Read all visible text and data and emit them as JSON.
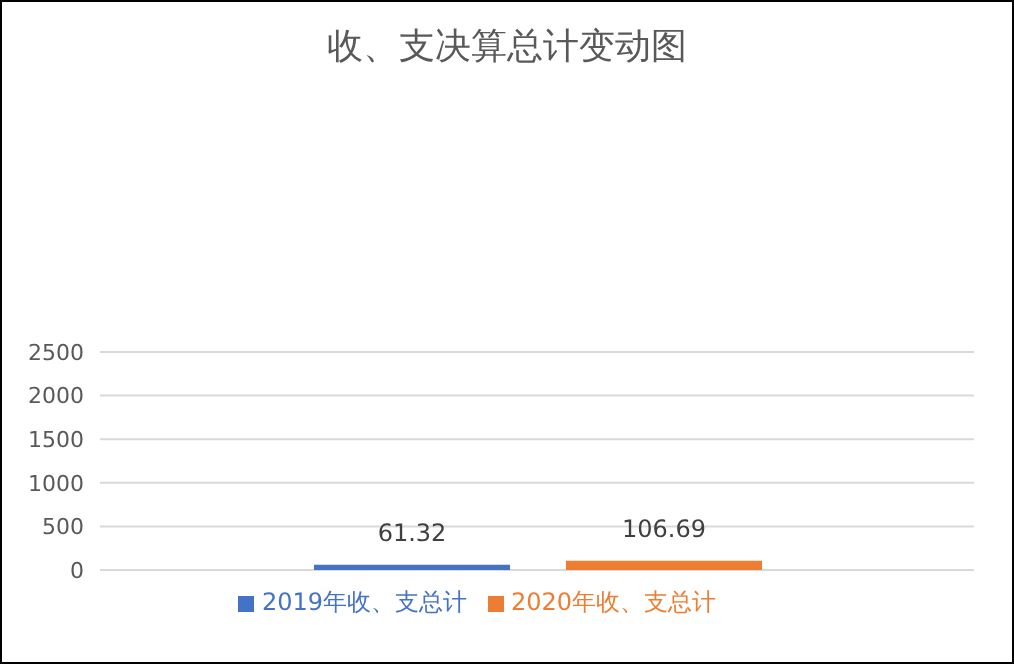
{
  "chart_data": {
    "type": "bar",
    "title": "收、支决算总计变动图",
    "categories": [
      null
    ],
    "series": [
      {
        "name": "2019年收、支总计",
        "color": "#4472c4",
        "values": [
          61.32
        ]
      },
      {
        "name": "2020年收、支总计",
        "color": "#ed7d31",
        "values": [
          106.69
        ]
      }
    ],
    "ylim": [
      0,
      2500
    ],
    "yticks": [
      0,
      500,
      1000,
      1500,
      2000,
      2500
    ],
    "grid": "y",
    "legend": "bottom",
    "data_labels": true
  }
}
